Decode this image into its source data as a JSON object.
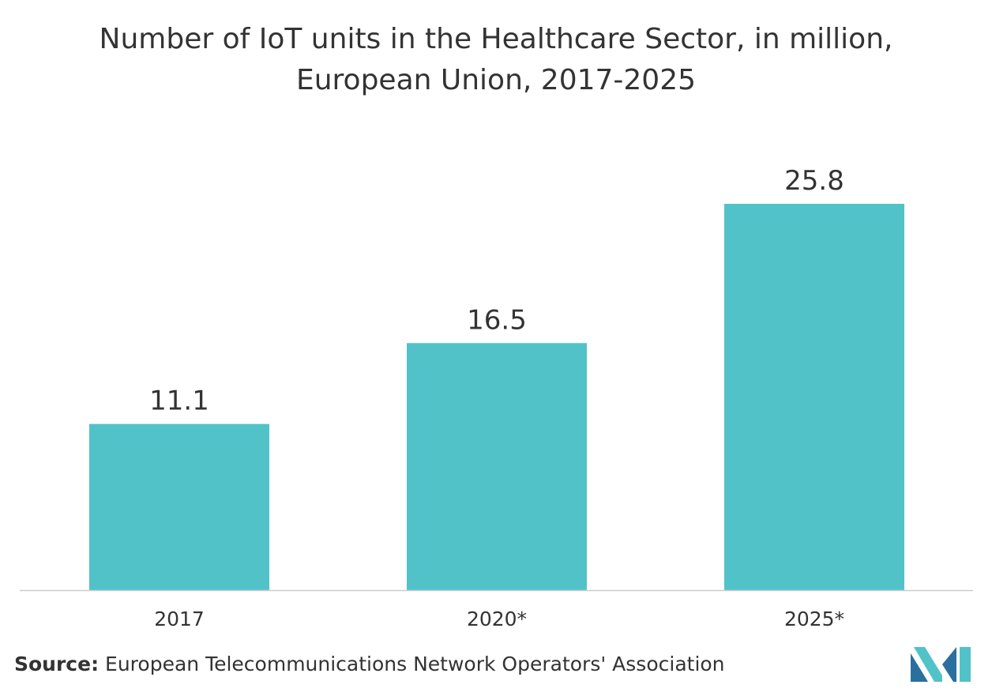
{
  "chart_data": {
    "type": "bar",
    "title_line1": "Number of IoT units in the Healthcare Sector, in million,",
    "title_line2": "European Union, 2017-2025",
    "categories": [
      "2017",
      "2020*",
      "2025*"
    ],
    "values": [
      11.1,
      16.5,
      25.8
    ],
    "value_labels": [
      "11.1",
      "16.5",
      "25.8"
    ],
    "xlabel": "",
    "ylabel": "",
    "ylim": [
      0,
      25.8
    ],
    "grid": false,
    "legend": "none",
    "bar_color": "#52c2c9",
    "axis_color": "#cccccc"
  },
  "source": {
    "label": "Source:",
    "text": " European Telecommunications Network Operators' Association"
  },
  "logo": {
    "colors": [
      "#2a6f9e",
      "#52c2c9"
    ]
  }
}
